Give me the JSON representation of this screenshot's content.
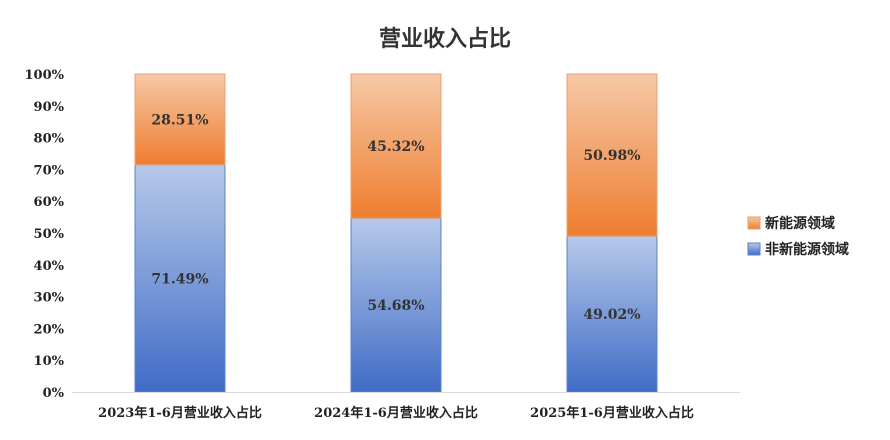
{
  "chart_data": {
    "type": "bar",
    "stacked": true,
    "title": "营业收入占比",
    "xlabel": "",
    "ylabel": "",
    "categories": [
      "2023年1-6月营业收入占比",
      "2024年1-6月营业收入占比",
      "2025年1-6月营业收入占比"
    ],
    "series": [
      {
        "name": "非新能源领域",
        "values": [
          71.49,
          54.68,
          49.02
        ],
        "labels": [
          "71.49%",
          "54.68%",
          "49.02%"
        ],
        "color": "#4472C4"
      },
      {
        "name": "新能源领域",
        "values": [
          28.51,
          45.32,
          50.98
        ],
        "labels": [
          "28.51%",
          "45.32%",
          "50.98%"
        ],
        "color": "#ED7D31"
      }
    ],
    "ylim": [
      0,
      100
    ],
    "yticks": [
      "0%",
      "10%",
      "20%",
      "30%",
      "40%",
      "50%",
      "60%",
      "70%",
      "80%",
      "90%",
      "100%"
    ],
    "grid": false,
    "legend_position": "right"
  }
}
